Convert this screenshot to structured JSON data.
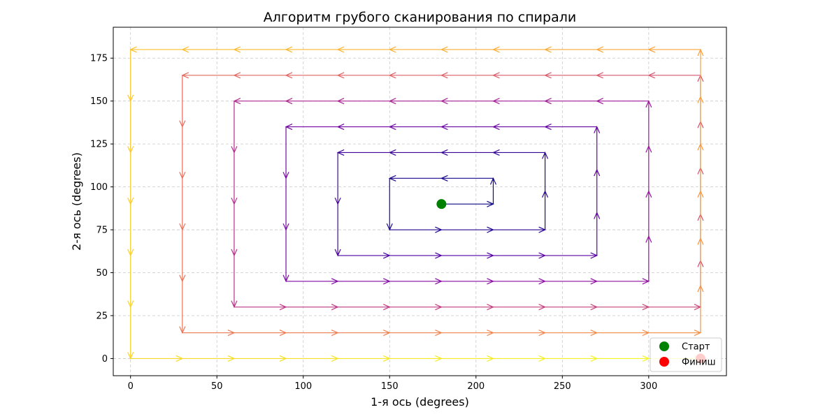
{
  "chart_data": {
    "type": "line",
    "title": "Алгоритм грубого сканирования по спирали",
    "xlabel": "1-я ось (degrees)",
    "ylabel": "2-я ось (degrees)",
    "xlim": [
      -10,
      345
    ],
    "ylim": [
      -10,
      193
    ],
    "xticks": [
      0,
      50,
      100,
      150,
      200,
      250,
      300
    ],
    "yticks": [
      0,
      25,
      50,
      75,
      100,
      125,
      150,
      175
    ],
    "grid": true,
    "grid_style": "dashed",
    "step": 30,
    "start": [
      180,
      90
    ],
    "finish": [
      330,
      0
    ],
    "path_color_map": "plasma (dark purple at start to yellow at end)",
    "path": [
      [
        180,
        90
      ],
      [
        210,
        90
      ],
      [
        210,
        105
      ],
      [
        150,
        105
      ],
      [
        150,
        75
      ],
      [
        240,
        75
      ],
      [
        240,
        120
      ],
      [
        120,
        120
      ],
      [
        120,
        60
      ],
      [
        270,
        60
      ],
      [
        270,
        135
      ],
      [
        90,
        135
      ],
      [
        90,
        45
      ],
      [
        300,
        45
      ],
      [
        300,
        150
      ],
      [
        60,
        150
      ],
      [
        60,
        30
      ],
      [
        330,
        30
      ],
      [
        330,
        165
      ],
      [
        30,
        165
      ],
      [
        30,
        15
      ],
      [
        330,
        15
      ],
      [
        330,
        180
      ],
      [
        0,
        180
      ],
      [
        0,
        0
      ],
      [
        330,
        0
      ]
    ],
    "legend": {
      "placement": "lower-right",
      "entries": [
        {
          "label": "Старт",
          "color": "#008000"
        },
        {
          "label": "Финиш",
          "color": "#ff0000"
        }
      ]
    }
  }
}
